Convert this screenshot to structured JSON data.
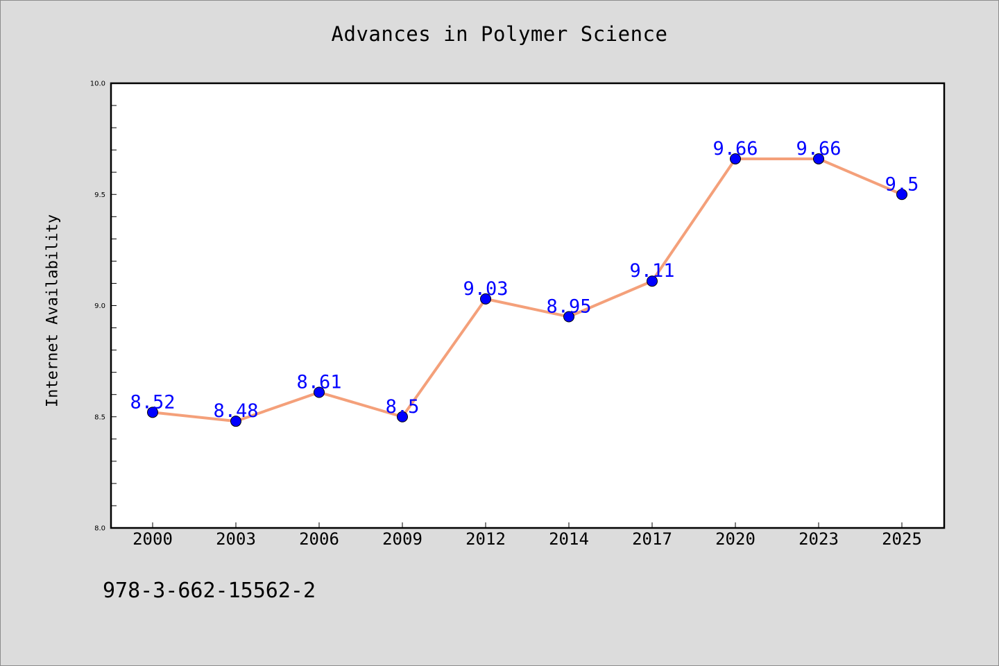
{
  "chart_data": {
    "type": "line",
    "title": "Advances in Polymer Science",
    "xlabel": "",
    "ylabel": "Internet Availability",
    "categories": [
      "2000",
      "2003",
      "2006",
      "2009",
      "2012",
      "2014",
      "2017",
      "2020",
      "2023",
      "2025"
    ],
    "series": [
      {
        "values": [
          8.52,
          8.48,
          8.61,
          8.5,
          9.03,
          8.95,
          9.11,
          9.66,
          9.66,
          9.5
        ],
        "data_labels": [
          "8.52",
          "8.48",
          "8.61",
          "8.5",
          "9.03",
          "8.95",
          "9.11",
          "9.66",
          "9.66",
          "9.5"
        ],
        "line_color": "#f4a07a",
        "marker_color": "#0000ff",
        "label_color": "#0000ff"
      }
    ],
    "ylim": [
      8.0,
      10.0
    ],
    "yticks": [
      "8.0",
      "8.5",
      "9.0",
      "9.5",
      "10.0"
    ],
    "grid": false,
    "legend": "none"
  },
  "footnote": "978-3-662-15562-2",
  "colors": {
    "background": "#dcdcdc",
    "plot_background": "#ffffff"
  }
}
